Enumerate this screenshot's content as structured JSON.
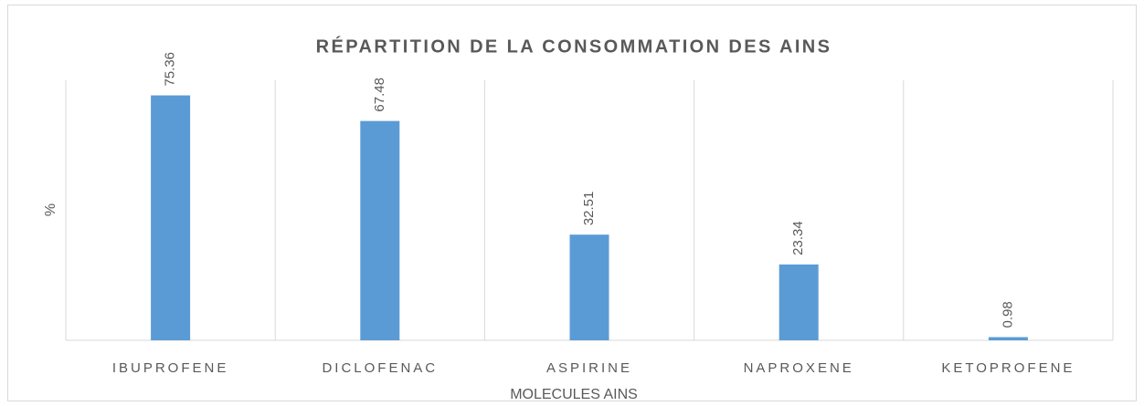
{
  "chart_data": {
    "type": "bar",
    "title": "RÉPARTITION DE LA CONSOMMATION DES AINS",
    "x_label": "MOLECULES AINS",
    "y_label": "%",
    "categories": [
      "IBUPROFENE",
      "DICLOFENAC",
      "ASPIRINE",
      "NAPROXENE",
      "KETOPROFENE"
    ],
    "values": [
      75.36,
      67.48,
      32.51,
      23.34,
      0.98
    ],
    "color": "#5b9bd5",
    "ylim": [
      0,
      80
    ]
  }
}
